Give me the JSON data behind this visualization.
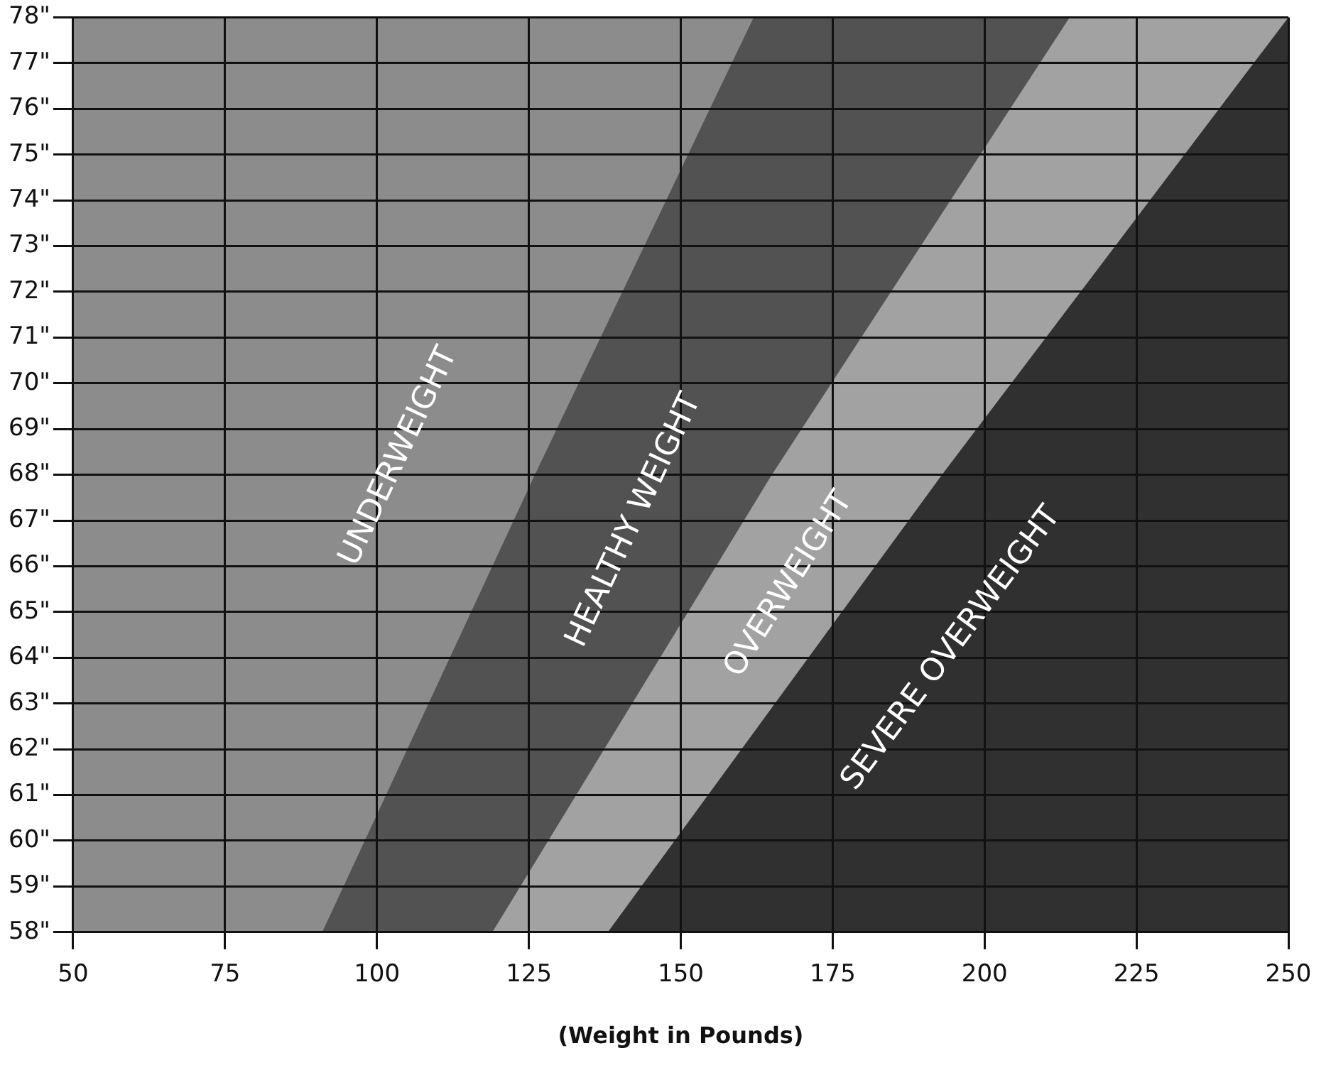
{
  "chart_data": {
    "type": "area",
    "xlabel": "(Weight in Pounds)",
    "xlim": [
      50,
      250
    ],
    "xticks": [
      50,
      75,
      100,
      125,
      150,
      175,
      200,
      225,
      250
    ],
    "ylim": [
      58,
      78
    ],
    "yticks": [
      {
        "value": 58,
        "label": "58\""
      },
      {
        "value": 59,
        "label": "59\""
      },
      {
        "value": 60,
        "label": "60\""
      },
      {
        "value": 61,
        "label": "61\""
      },
      {
        "value": 62,
        "label": "62\""
      },
      {
        "value": 63,
        "label": "63\""
      },
      {
        "value": 64,
        "label": "64\""
      },
      {
        "value": 65,
        "label": "65\""
      },
      {
        "value": 66,
        "label": "66\""
      },
      {
        "value": 67,
        "label": "67\""
      },
      {
        "value": 68,
        "label": "68\""
      },
      {
        "value": 69,
        "label": "69\""
      },
      {
        "value": 70,
        "label": "70\""
      },
      {
        "value": 71,
        "label": "71\""
      },
      {
        "value": 72,
        "label": "72\""
      },
      {
        "value": 73,
        "label": "73\""
      },
      {
        "value": 74,
        "label": "74\""
      },
      {
        "value": 75,
        "label": "75\""
      },
      {
        "value": 76,
        "label": "76\""
      },
      {
        "value": 77,
        "label": "77\""
      },
      {
        "value": 78,
        "label": "78\""
      }
    ],
    "grid": true,
    "legend": false,
    "marker": "none",
    "series": [
      {
        "name": "UNDERWEIGHT",
        "color": "#8c8c8c",
        "x": [
          50,
          100,
          162
        ],
        "values": [
          78,
          78,
          78
        ]
      },
      {
        "name": "HEALTHY WEIGHT",
        "color": "#525252",
        "x": [
          91,
          126,
          162,
          250
        ],
        "values": [
          58,
          68,
          78,
          78
        ]
      },
      {
        "name": "OVERWEIGHT",
        "color": "#a2a2a2",
        "x": [
          119,
          165,
          214,
          250
        ],
        "values": [
          58,
          68,
          78,
          78
        ]
      },
      {
        "name": "SEVERE OVERWEIGHT",
        "color": "#303030",
        "x": [
          138,
          193,
          250
        ],
        "values": [
          58,
          68,
          78
        ]
      }
    ]
  }
}
